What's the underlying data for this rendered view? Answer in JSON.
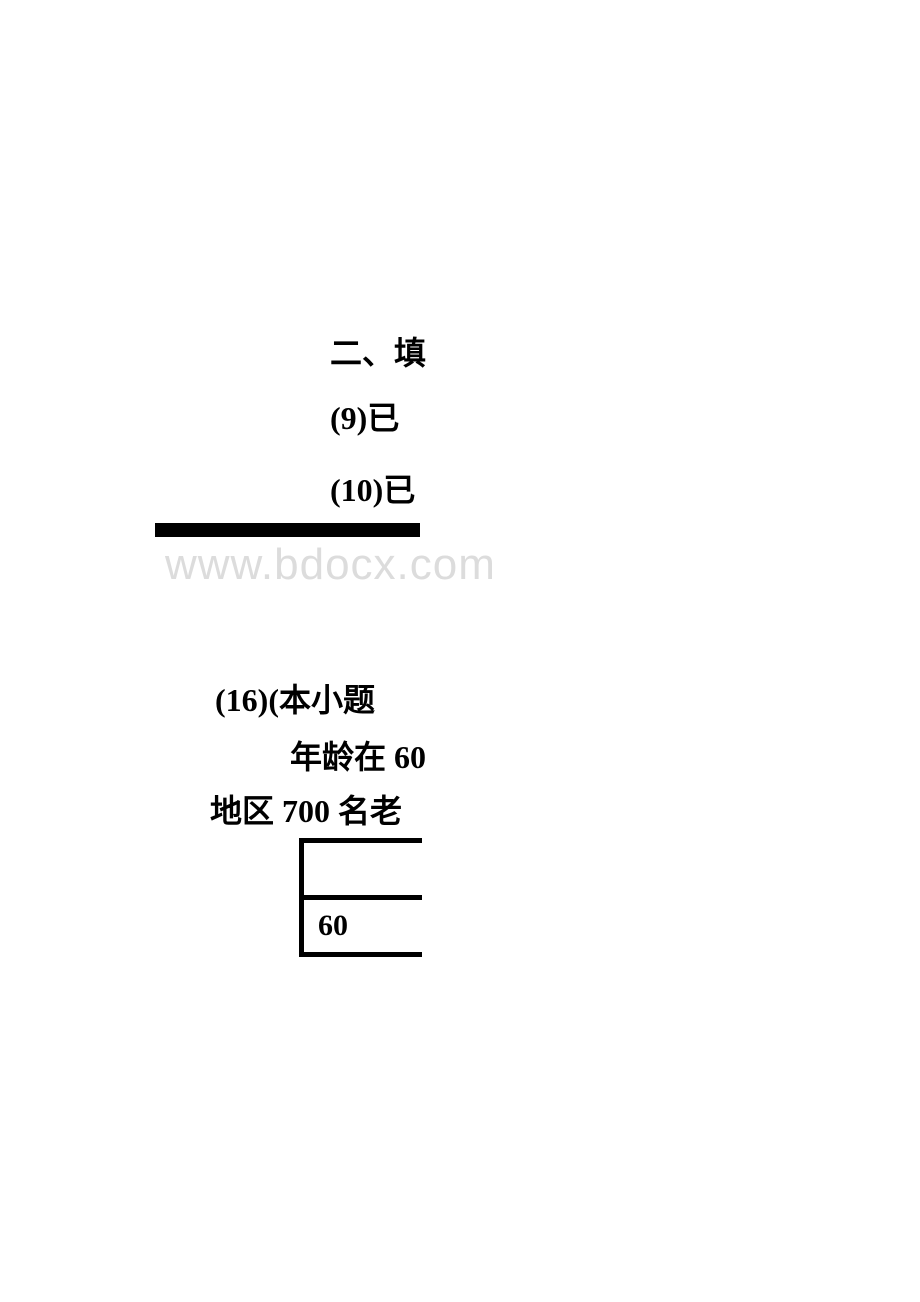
{
  "section_heading": "二、填",
  "item_9": "(9)已",
  "item_10": "(10)已",
  "watermark": "www.bdocx.com",
  "item_16": "(16)(本小题",
  "line_age": "年龄在 60",
  "line_region": "地区 700 名老",
  "table": {
    "cell_value": "60",
    "border_color": "#000000",
    "cell_bg": "#ffffff"
  },
  "colors": {
    "text": "#000000",
    "background": "#ffffff",
    "watermark": "#dcdcdc"
  },
  "typography": {
    "body_fontsize": 32,
    "watermark_fontsize": 44,
    "font_family": "SimSun"
  }
}
